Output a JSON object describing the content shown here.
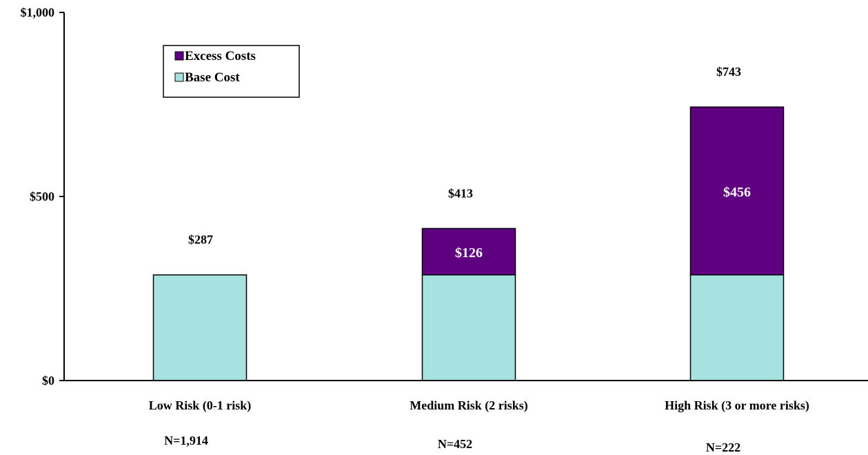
{
  "chart_data": {
    "type": "bar",
    "stacked": true,
    "categories": [
      "Low Risk   (0-1 risk)",
      "Medium Risk (2 risks)",
      "High Risk   (3 or more risks)"
    ],
    "sample_sizes": [
      "N=1,914",
      "N=452",
      "N=222"
    ],
    "series": [
      {
        "name": "Base Cost",
        "values": [
          287,
          287,
          287
        ],
        "color": "#a6e2e0"
      },
      {
        "name": "Excess Costs",
        "values": [
          0,
          126,
          456
        ],
        "color": "#5f0080"
      }
    ],
    "totals": [
      287,
      413,
      743
    ],
    "total_labels": [
      "$287",
      "$413",
      "$743"
    ],
    "segment_labels": [
      "",
      "$126",
      "$456"
    ],
    "yticks": [
      0,
      500,
      1000
    ],
    "ytick_labels": [
      "$0",
      "$500",
      "$1,000"
    ],
    "ylim": [
      0,
      1000
    ],
    "legend_order": [
      "Excess Costs",
      "Base Cost"
    ],
    "legend_placement": "top-left",
    "grid": false
  }
}
